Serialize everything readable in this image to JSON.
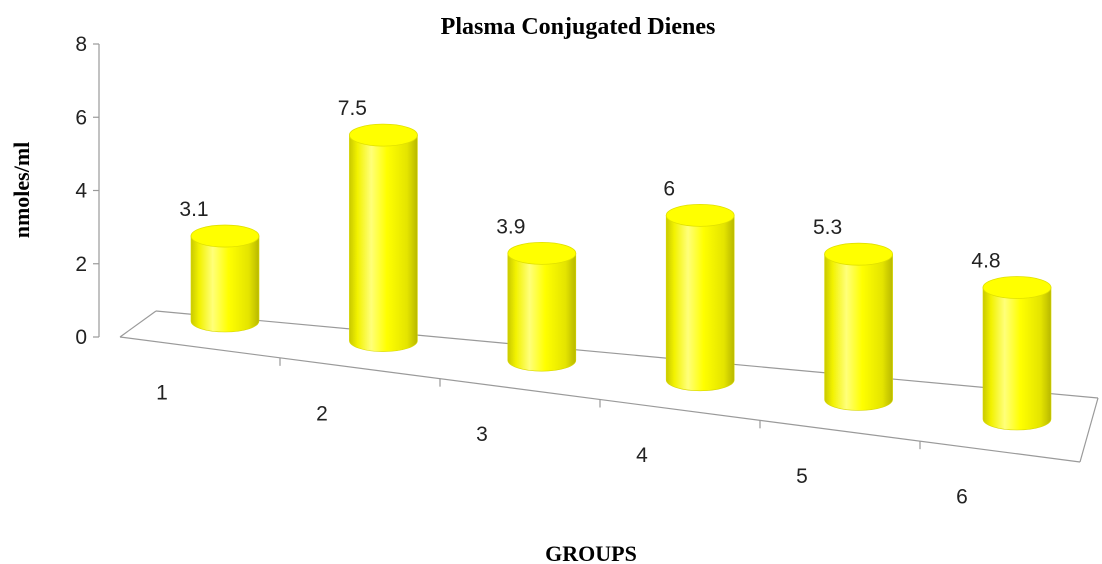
{
  "chart_data": {
    "type": "bar",
    "title": "Plasma Conjugated Dienes",
    "xlabel": "GROUPS",
    "ylabel": "nmoles/ml",
    "categories": [
      "1",
      "2",
      "3",
      "4",
      "5",
      "6"
    ],
    "values": [
      3.1,
      7.5,
      3.9,
      6,
      5.3,
      4.8
    ],
    "data_labels": [
      "3.1",
      "7.5",
      "3.9",
      "6",
      "5.3",
      "4.8"
    ],
    "yticks": [
      0,
      2,
      4,
      6,
      8
    ],
    "ylim": [
      0,
      8
    ],
    "bar_shape": "cylinder",
    "bar_color": "#ffff00",
    "grid": false,
    "legend": "none"
  }
}
